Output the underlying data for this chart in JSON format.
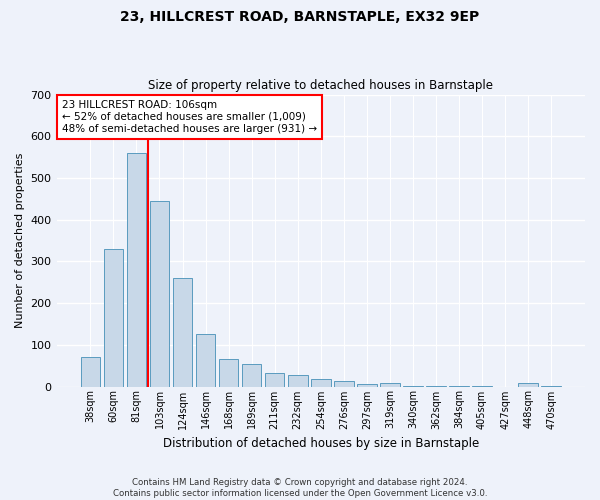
{
  "title": "23, HILLCREST ROAD, BARNSTAPLE, EX32 9EP",
  "subtitle": "Size of property relative to detached houses in Barnstaple",
  "xlabel": "Distribution of detached houses by size in Barnstaple",
  "ylabel": "Number of detached properties",
  "bar_labels": [
    "38sqm",
    "60sqm",
    "81sqm",
    "103sqm",
    "124sqm",
    "146sqm",
    "168sqm",
    "189sqm",
    "211sqm",
    "232sqm",
    "254sqm",
    "276sqm",
    "297sqm",
    "319sqm",
    "340sqm",
    "362sqm",
    "384sqm",
    "405sqm",
    "427sqm",
    "448sqm",
    "470sqm"
  ],
  "bar_values": [
    70,
    330,
    560,
    445,
    260,
    125,
    65,
    55,
    32,
    28,
    17,
    13,
    5,
    8,
    2,
    1,
    1,
    1,
    0,
    8,
    2
  ],
  "bar_color": "#c8d8e8",
  "bar_edge_color": "#5a9bbf",
  "vline_x": 3.0,
  "vline_color": "red",
  "annotation_line1": "23 HILLCREST ROAD: 106sqm",
  "annotation_line2": "← 52% of detached houses are smaller (1,009)",
  "annotation_line3": "48% of semi-detached houses are larger (931) →",
  "annotation_box_color": "white",
  "annotation_box_edge_color": "red",
  "ylim": [
    0,
    700
  ],
  "yticks": [
    0,
    100,
    200,
    300,
    400,
    500,
    600,
    700
  ],
  "footer_text": "Contains HM Land Registry data © Crown copyright and database right 2024.\nContains public sector information licensed under the Open Government Licence v3.0.",
  "bg_color": "#eef2fa",
  "grid_color": "white"
}
